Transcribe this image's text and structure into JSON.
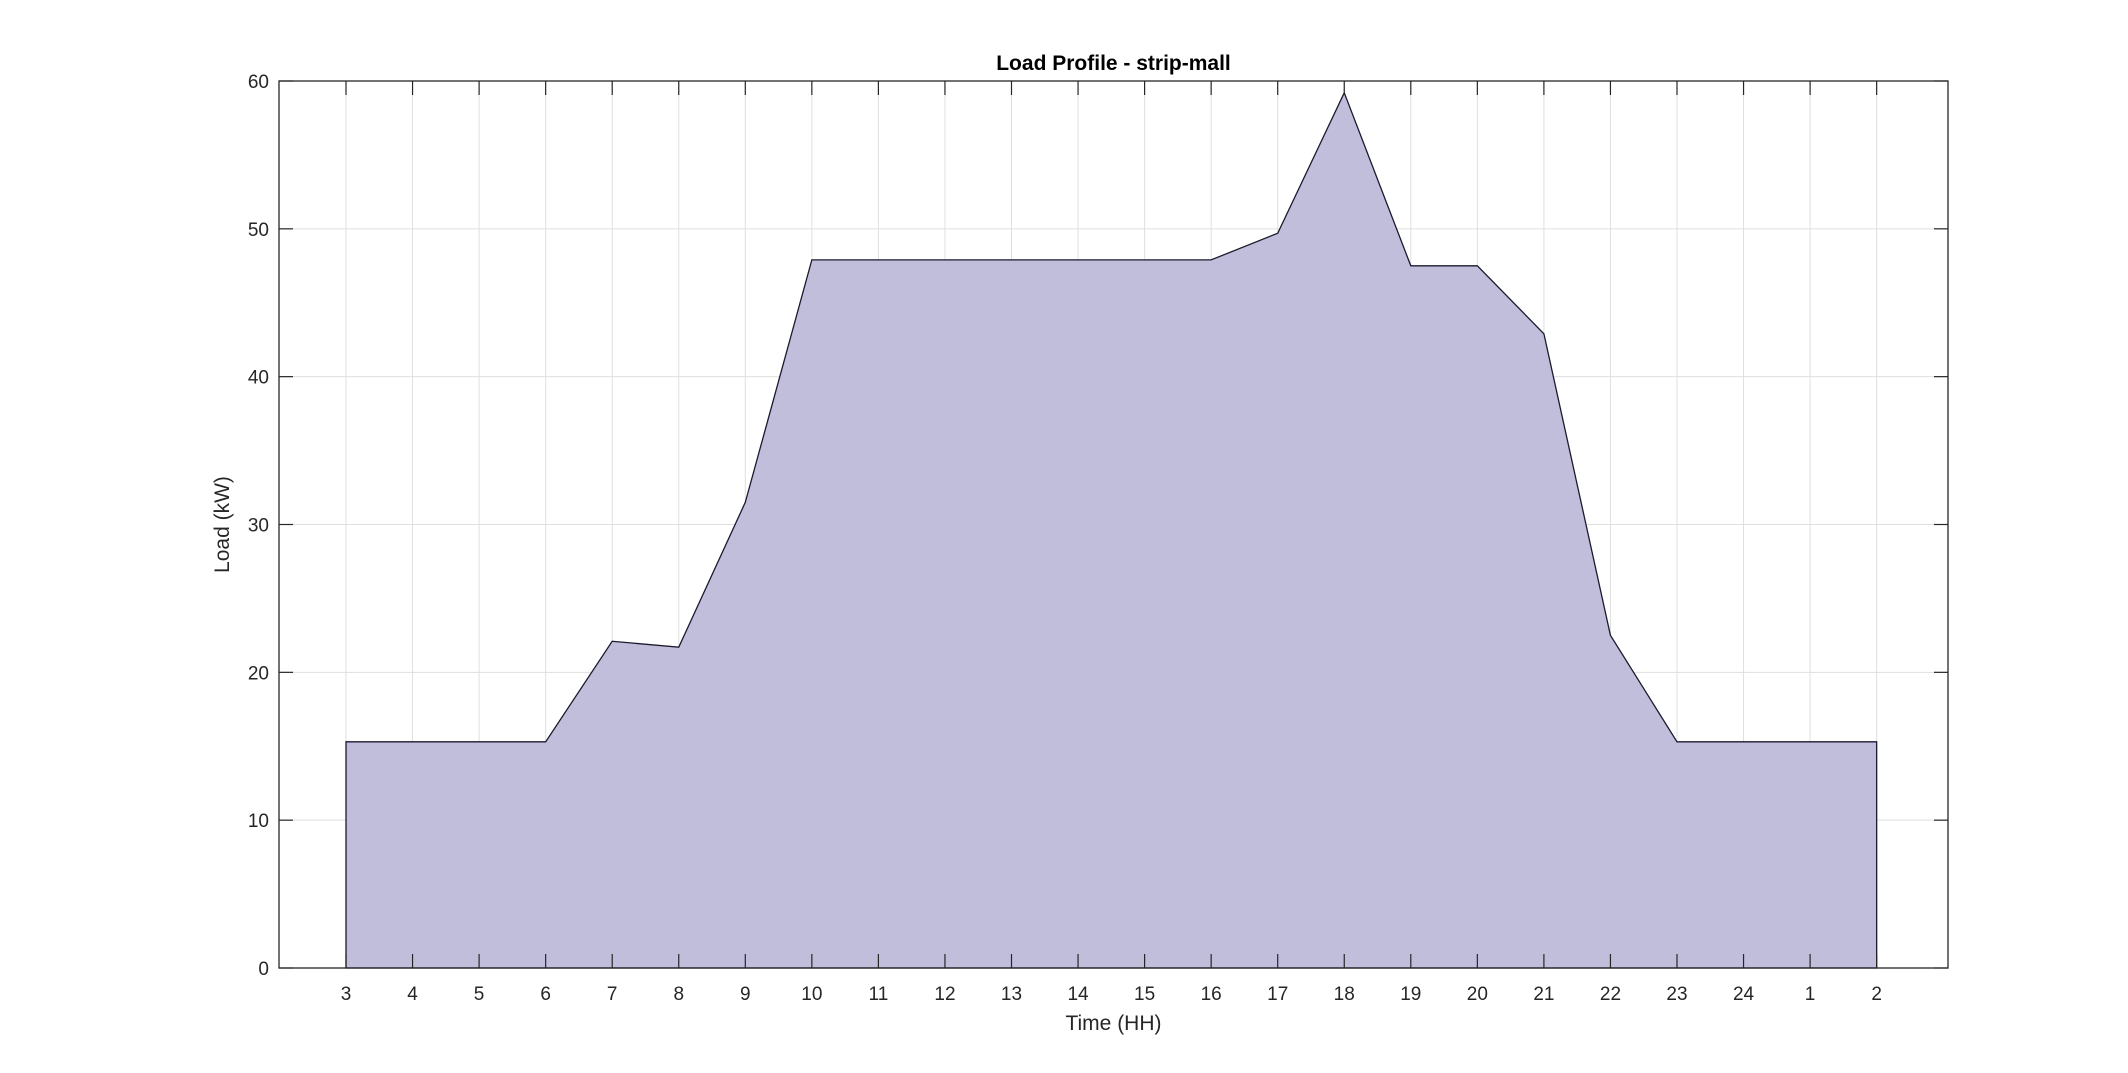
{
  "chart_data": {
    "type": "area",
    "title": "Load Profile - strip-mall",
    "xlabel": "Time (HH)",
    "ylabel": "Load (kW)",
    "categories": [
      "3",
      "4",
      "5",
      "6",
      "7",
      "8",
      "9",
      "10",
      "11",
      "12",
      "13",
      "14",
      "15",
      "16",
      "17",
      "18",
      "19",
      "20",
      "21",
      "22",
      "23",
      "24",
      "1",
      "2"
    ],
    "series": [
      {
        "values": [
          15.3,
          15.3,
          15.3,
          15.3,
          22.1,
          21.7,
          31.5,
          47.9,
          47.9,
          47.9,
          47.9,
          47.9,
          47.9,
          47.9,
          49.7,
          59.2,
          47.5,
          47.5,
          42.9,
          22.5,
          15.3,
          15.3,
          15.3,
          15.3
        ]
      }
    ],
    "ylim": [
      0,
      60
    ],
    "yticks": [
      0,
      10,
      20,
      30,
      40,
      50,
      60
    ],
    "grid": true,
    "colors": {
      "fill": "#c1bedc",
      "edge": "#1a1a2e",
      "axis": "#262626",
      "grid": "#dfdfdf"
    }
  }
}
